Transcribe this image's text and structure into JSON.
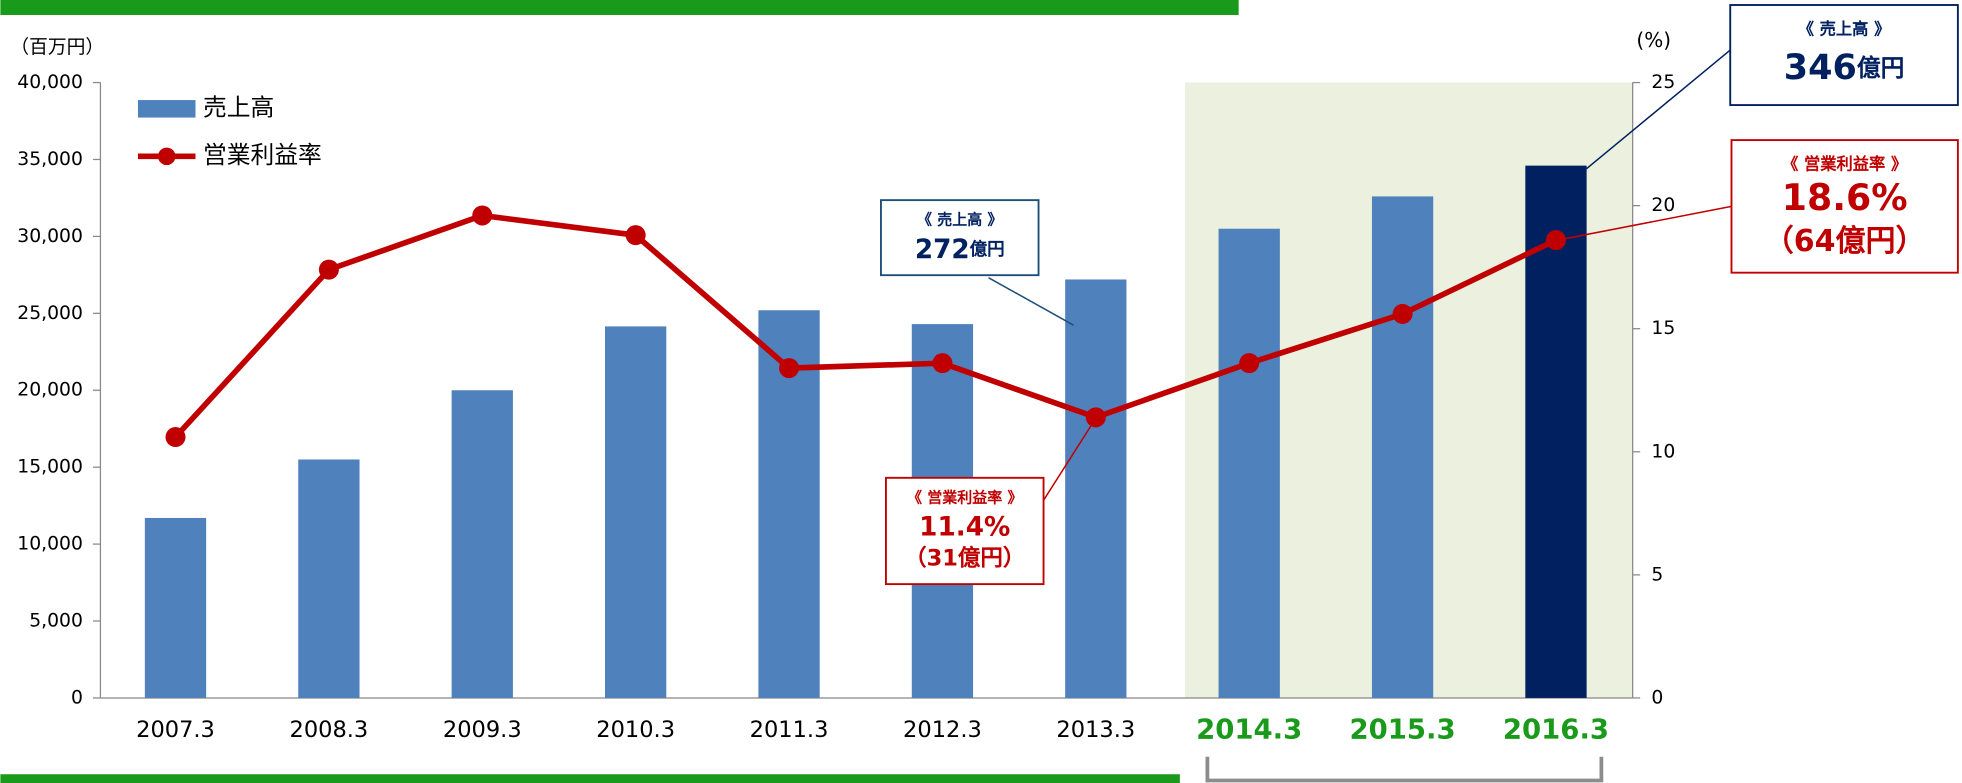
{
  "chart_data": {
    "type": "bar",
    "y_unit_label": "（百万円）",
    "y2_unit_label": "(%)",
    "categories": [
      "2007.3",
      "2008.3",
      "2009.3",
      "2010.3",
      "2011.3",
      "2012.3",
      "2013.3",
      "2014.3",
      "2015.3",
      "2016.3"
    ],
    "category_label_colors": [
      "#000000",
      "#000000",
      "#000000",
      "#000000",
      "#000000",
      "#000000",
      "#000000",
      "#1a9a1a",
      "#1a9a1a",
      "#1a9a1a"
    ],
    "series": [
      {
        "name": "売上高",
        "type": "bar",
        "color": "#4f81bd",
        "bar_colors": [
          "#4f81bd",
          "#4f81bd",
          "#4f81bd",
          "#4f81bd",
          "#4f81bd",
          "#4f81bd",
          "#4f81bd",
          "#4f81bd",
          "#4f81bd",
          "#002060"
        ],
        "values": [
          11700,
          15500,
          20000,
          24150,
          25200,
          24300,
          27200,
          30500,
          32600,
          34600
        ]
      },
      {
        "name": "営業利益率",
        "type": "line",
        "axis": "y2",
        "color": "#c00000",
        "values": [
          10.6,
          17.4,
          19.6,
          18.8,
          13.4,
          13.6,
          11.4,
          13.6,
          15.6,
          18.6
        ]
      }
    ],
    "ylim": [
      0,
      40000
    ],
    "yticks": [
      0,
      {
        "value": 5000,
        "label": "5,000"
      },
      {
        "value": 10000,
        "label": "10,000"
      },
      {
        "value": 15000,
        "label": "15,000"
      },
      {
        "value": 20000,
        "label": "20,000"
      },
      {
        "value": 25000,
        "label": "25,000"
      },
      {
        "value": 30000,
        "label": "30,000"
      },
      {
        "value": 35000,
        "label": "35,000"
      },
      {
        "value": 40000,
        "label": "40,000"
      }
    ],
    "y2lim": [
      0,
      25
    ],
    "y2ticks": [
      0,
      5,
      10,
      15,
      20,
      25
    ],
    "shade": {
      "from": "2014.3",
      "to": "2016.3",
      "color": "#ebf1de"
    },
    "legend": "upper left",
    "annotations": [
      {
        "title": "《 売上高 》",
        "value": "272",
        "unit": "億円",
        "color": "#002060"
      },
      {
        "title": "《 営業利益率 》",
        "value": "11.4%",
        "sub": "（31億円）",
        "color": "#c00000"
      },
      {
        "title": "《 売上高 》",
        "value": "346",
        "unit": "億円",
        "color": "#002060"
      },
      {
        "title": "《 営業利益率 》",
        "value": "18.6%",
        "sub": "（64億円）",
        "color": "#c00000"
      }
    ]
  }
}
